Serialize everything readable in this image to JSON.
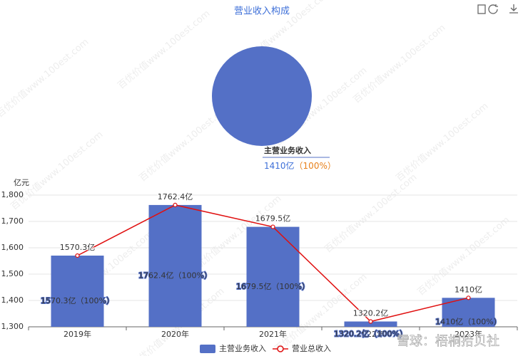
{
  "chart_data": [
    {
      "type": "pie",
      "title": "营业收入构成",
      "categories": [
        "主营业务收入"
      ],
      "values": [
        1410
      ],
      "color": "#5470c6",
      "value_labels": [
        "1410亿"
      ],
      "share_labels": [
        "（100%）"
      ]
    },
    {
      "type": "bar",
      "y_label": "亿元",
      "categories": [
        "2019年",
        "2020年",
        "2021年",
        "2022年",
        "2023年"
      ],
      "series": [
        {
          "name": "主营业务收入",
          "type": "bar",
          "color": "#5470c6",
          "values": [
            1570.3,
            1762.4,
            1679.5,
            1320.2,
            1410
          ],
          "value_labels": [
            "1570.3亿（100%）",
            "1762.4亿（100%）",
            "1679.5亿（100%）",
            "1320.2亿（100%）",
            "1410亿（100%）"
          ]
        },
        {
          "name": "营业总收入",
          "type": "line",
          "color": "#e01010",
          "values": [
            1570.3,
            1762.4,
            1679.5,
            1320.2,
            1410
          ],
          "value_labels": [
            "1570.3亿",
            "1762.4亿",
            "1679.5亿",
            "1320.2亿",
            "1410亿"
          ]
        }
      ],
      "ylim": [
        1300,
        1800
      ],
      "yticks": [
        {
          "value": 1300,
          "label": "1,300"
        },
        {
          "value": 1400,
          "label": "1,400"
        },
        {
          "value": 1500,
          "label": "1,500"
        },
        {
          "value": 1600,
          "label": "1,600"
        },
        {
          "value": 1700,
          "label": "1,700"
        },
        {
          "value": 1800,
          "label": "1,800"
        }
      ],
      "grid": true,
      "legend": "bottom"
    }
  ],
  "watermarks": [
    "百优价值www.100est.com",
    "雪球：梧桐拾贝社"
  ]
}
